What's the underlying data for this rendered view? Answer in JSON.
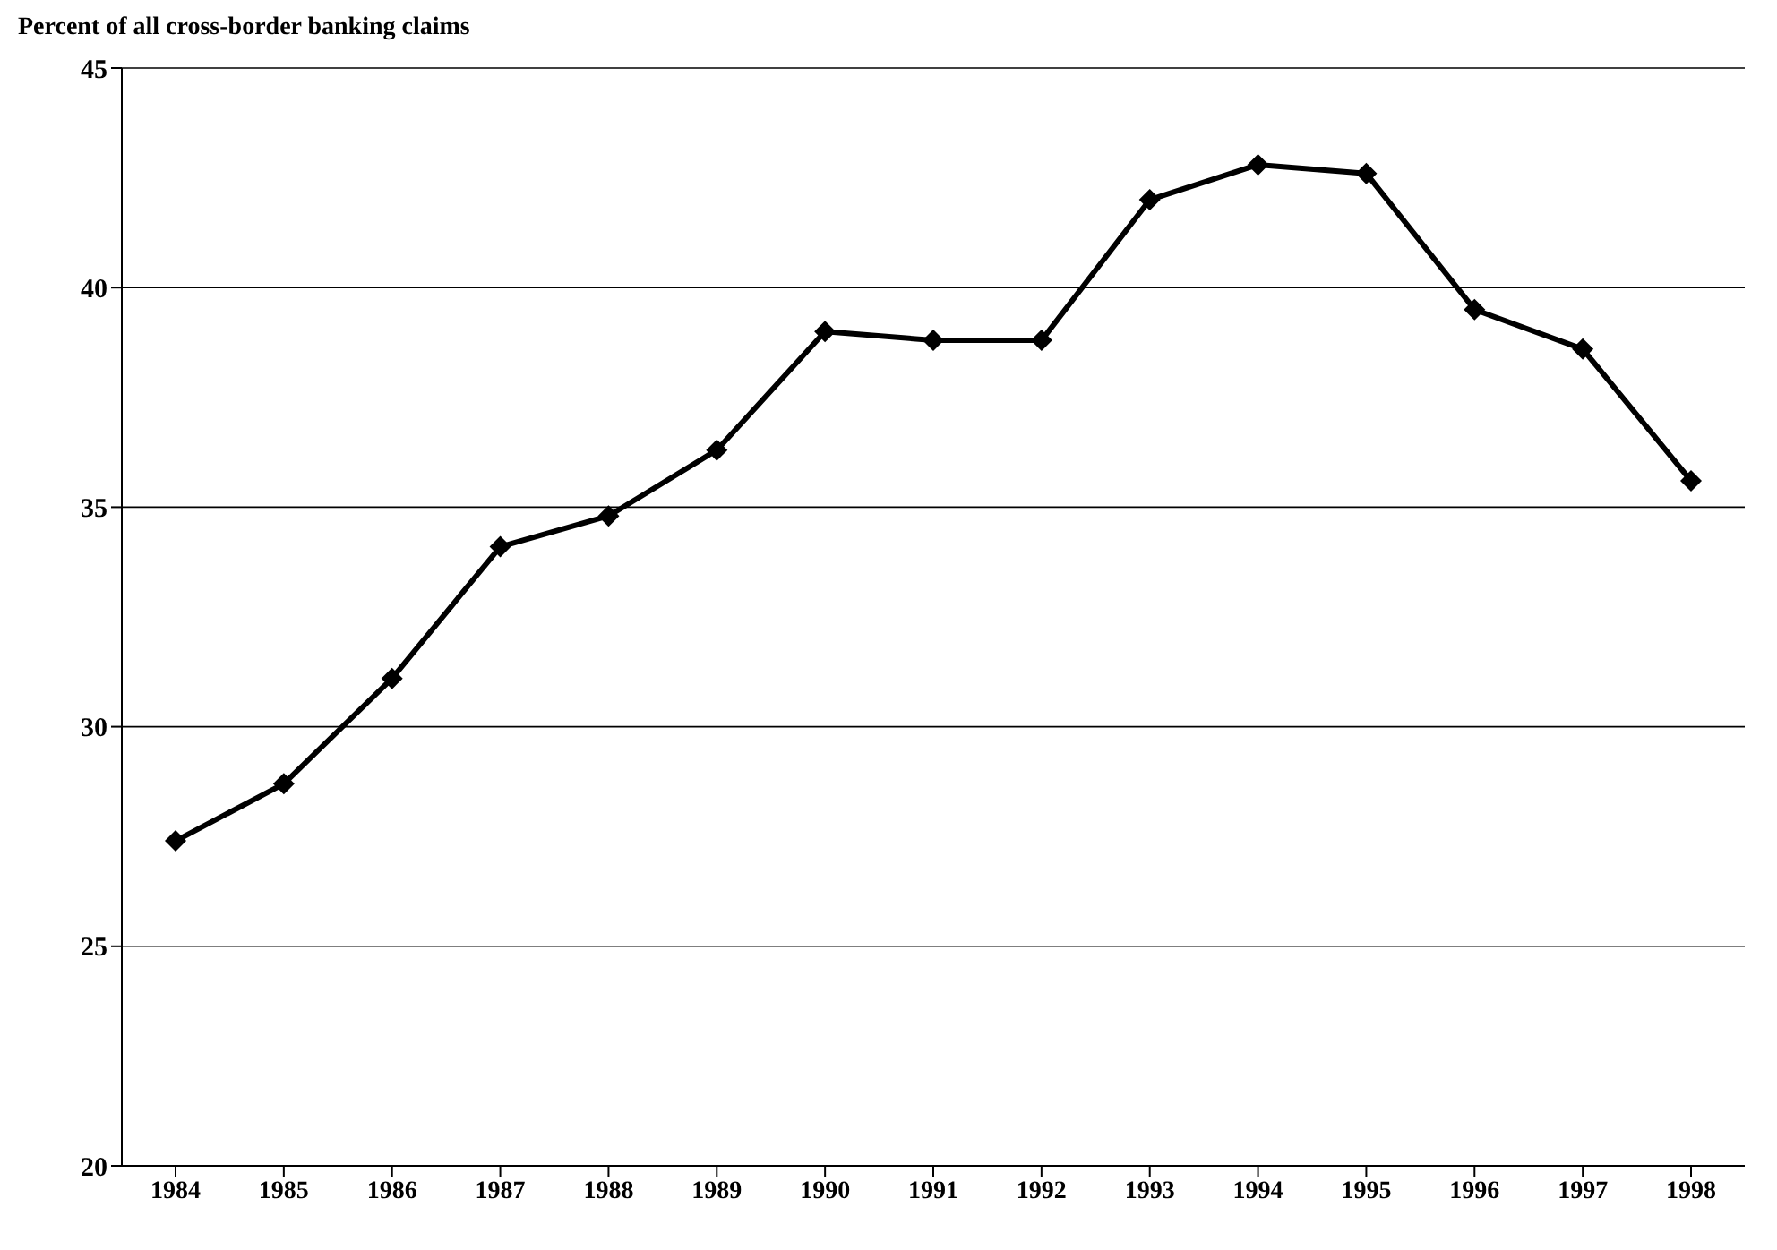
{
  "chart_data": {
    "type": "line",
    "title": "Percent of all cross-border banking claims",
    "categories": [
      "1984",
      "1985",
      "1986",
      "1987",
      "1988",
      "1989",
      "1990",
      "1991",
      "1992",
      "1993",
      "1994",
      "1995",
      "1996",
      "1997",
      "1998"
    ],
    "series": [
      {
        "color": "#000000",
        "values": [
          27.4,
          28.7,
          31.1,
          34.1,
          34.8,
          36.3,
          39.0,
          38.8,
          38.8,
          42.0,
          42.8,
          42.6,
          39.5,
          38.6,
          35.6
        ]
      }
    ],
    "ylim": [
      20,
      45
    ],
    "yticks": [
      20,
      25,
      30,
      35,
      40,
      45
    ],
    "grid": "y",
    "marker": "diamond",
    "line_style": "solid",
    "legend": false
  }
}
